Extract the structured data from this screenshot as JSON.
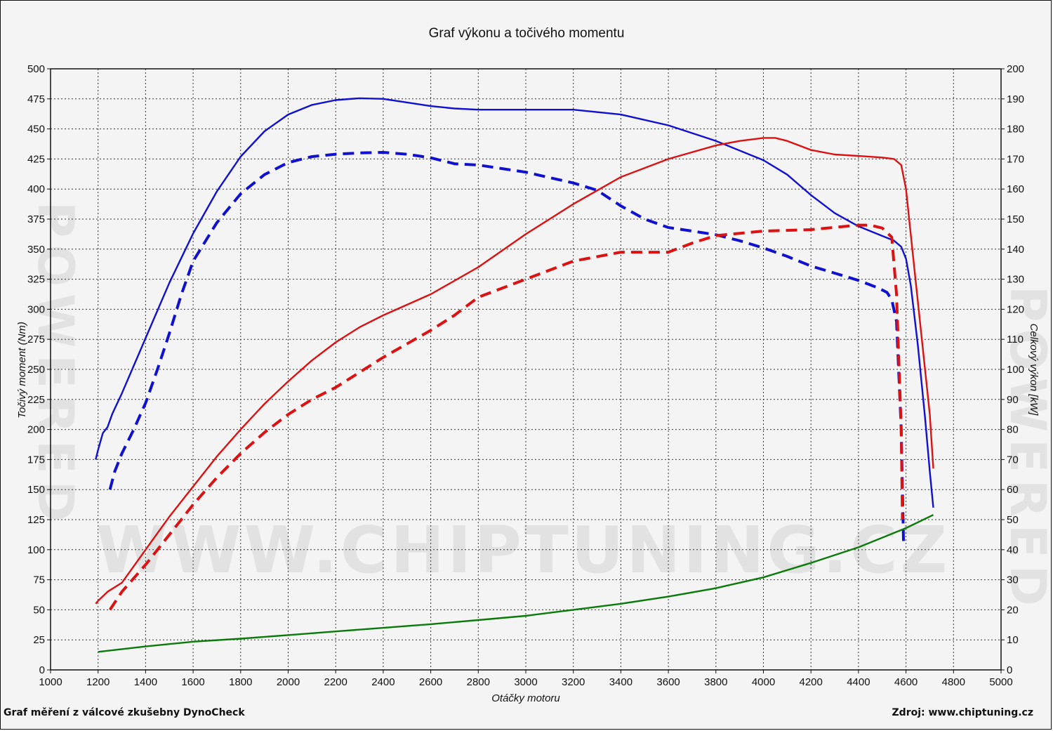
{
  "chart_data": {
    "type": "line",
    "title": "Graf výkonu a točivého momentu",
    "xlabel": "Otáčky motoru",
    "ylabel_left": "Točivý moment (Nm)",
    "ylabel_right": "Celkový výkon [kW]",
    "xlim": [
      1000,
      5000
    ],
    "ylim_left": [
      0,
      500
    ],
    "ylim_right": [
      0,
      200
    ],
    "x_ticks": [
      1000,
      1200,
      1400,
      1600,
      1800,
      2000,
      2200,
      2400,
      2600,
      2800,
      3000,
      3200,
      3400,
      3600,
      3800,
      4000,
      4200,
      4400,
      4600,
      4800,
      5000
    ],
    "y_left_ticks": [
      0,
      25,
      50,
      75,
      100,
      125,
      150,
      175,
      200,
      225,
      250,
      275,
      300,
      325,
      350,
      375,
      400,
      425,
      450,
      475,
      500
    ],
    "y_right_ticks": [
      0,
      10,
      20,
      30,
      40,
      50,
      60,
      70,
      80,
      90,
      100,
      110,
      120,
      130,
      140,
      150,
      160,
      170,
      180,
      190,
      200
    ],
    "grid": true,
    "series": [
      {
        "axis": "left",
        "color": "#1010d0",
        "dash": false,
        "points": [
          [
            1190,
            175
          ],
          [
            1200,
            183
          ],
          [
            1220,
            197
          ],
          [
            1240,
            202
          ],
          [
            1260,
            213
          ],
          [
            1300,
            230
          ],
          [
            1350,
            253
          ],
          [
            1400,
            276
          ],
          [
            1500,
            322
          ],
          [
            1600,
            363
          ],
          [
            1700,
            398
          ],
          [
            1800,
            427
          ],
          [
            1900,
            448
          ],
          [
            2000,
            462
          ],
          [
            2100,
            470
          ],
          [
            2200,
            474
          ],
          [
            2300,
            475.5
          ],
          [
            2400,
            475
          ],
          [
            2500,
            472
          ],
          [
            2600,
            469
          ],
          [
            2700,
            467
          ],
          [
            2800,
            466
          ],
          [
            3000,
            466
          ],
          [
            3200,
            466
          ],
          [
            3400,
            462
          ],
          [
            3600,
            453
          ],
          [
            3800,
            440
          ],
          [
            4000,
            424
          ],
          [
            4100,
            412
          ],
          [
            4200,
            395
          ],
          [
            4300,
            380
          ],
          [
            4400,
            369
          ],
          [
            4500,
            361
          ],
          [
            4550,
            357
          ],
          [
            4580,
            352
          ],
          [
            4600,
            342
          ],
          [
            4620,
            320
          ],
          [
            4650,
            270
          ],
          [
            4680,
            210
          ],
          [
            4700,
            165
          ],
          [
            4715,
            135
          ]
        ]
      },
      {
        "axis": "left",
        "color": "#1010d0",
        "dash": true,
        "points": [
          [
            1250,
            150
          ],
          [
            1270,
            165
          ],
          [
            1300,
            180
          ],
          [
            1350,
            200
          ],
          [
            1400,
            222
          ],
          [
            1450,
            250
          ],
          [
            1500,
            280
          ],
          [
            1550,
            312
          ],
          [
            1600,
            340
          ],
          [
            1700,
            372
          ],
          [
            1800,
            396
          ],
          [
            1900,
            412
          ],
          [
            2000,
            422
          ],
          [
            2100,
            427
          ],
          [
            2200,
            429
          ],
          [
            2300,
            430
          ],
          [
            2400,
            430.5
          ],
          [
            2500,
            429
          ],
          [
            2600,
            426
          ],
          [
            2700,
            421
          ],
          [
            2800,
            420
          ],
          [
            2900,
            417
          ],
          [
            3000,
            414
          ],
          [
            3200,
            405
          ],
          [
            3300,
            399
          ],
          [
            3400,
            386
          ],
          [
            3500,
            375
          ],
          [
            3600,
            368
          ],
          [
            3700,
            365
          ],
          [
            3800,
            362
          ],
          [
            3900,
            357
          ],
          [
            4000,
            351
          ],
          [
            4100,
            344
          ],
          [
            4200,
            336
          ],
          [
            4300,
            330
          ],
          [
            4400,
            324
          ],
          [
            4480,
            318
          ],
          [
            4520,
            314
          ],
          [
            4540,
            308
          ],
          [
            4560,
            290
          ],
          [
            4580,
            200
          ],
          [
            4585,
            150
          ],
          [
            4590,
            103
          ]
        ]
      },
      {
        "axis": "right",
        "color": "#dd1111",
        "dash": false,
        "points": [
          [
            1190,
            22
          ],
          [
            1200,
            23
          ],
          [
            1240,
            26
          ],
          [
            1300,
            29
          ],
          [
            1400,
            40
          ],
          [
            1500,
            51
          ],
          [
            1600,
            61
          ],
          [
            1700,
            71
          ],
          [
            1800,
            80
          ],
          [
            1900,
            88.5
          ],
          [
            2000,
            96
          ],
          [
            2100,
            103
          ],
          [
            2200,
            109
          ],
          [
            2300,
            114
          ],
          [
            2400,
            118
          ],
          [
            2600,
            125
          ],
          [
            2800,
            134
          ],
          [
            3000,
            145
          ],
          [
            3200,
            155
          ],
          [
            3400,
            164
          ],
          [
            3600,
            170
          ],
          [
            3800,
            174.5
          ],
          [
            3900,
            176
          ],
          [
            4000,
            177
          ],
          [
            4050,
            177
          ],
          [
            4100,
            176
          ],
          [
            4200,
            173
          ],
          [
            4300,
            171.5
          ],
          [
            4400,
            171
          ],
          [
            4500,
            170.5
          ],
          [
            4550,
            170
          ],
          [
            4580,
            168
          ],
          [
            4600,
            160
          ],
          [
            4640,
            130
          ],
          [
            4680,
            100
          ],
          [
            4700,
            85
          ],
          [
            4715,
            67
          ]
        ]
      },
      {
        "axis": "right",
        "color": "#dd1111",
        "dash": true,
        "points": [
          [
            1250,
            20
          ],
          [
            1300,
            26
          ],
          [
            1400,
            35
          ],
          [
            1500,
            45
          ],
          [
            1600,
            55
          ],
          [
            1700,
            64
          ],
          [
            1800,
            72
          ],
          [
            1900,
            79
          ],
          [
            2000,
            85
          ],
          [
            2100,
            90
          ],
          [
            2200,
            94
          ],
          [
            2400,
            104
          ],
          [
            2600,
            113
          ],
          [
            2700,
            118
          ],
          [
            2800,
            124
          ],
          [
            3000,
            130
          ],
          [
            3200,
            136
          ],
          [
            3400,
            139
          ],
          [
            3600,
            139
          ],
          [
            3700,
            142
          ],
          [
            3800,
            144.5
          ],
          [
            4000,
            146
          ],
          [
            4200,
            146.5
          ],
          [
            4400,
            148
          ],
          [
            4450,
            148
          ],
          [
            4500,
            147
          ],
          [
            4540,
            144
          ],
          [
            4560,
            125
          ],
          [
            4580,
            80
          ],
          [
            4585,
            50
          ]
        ]
      },
      {
        "axis": "left",
        "color": "#0a7a0a",
        "dash": false,
        "points": [
          [
            1200,
            15
          ],
          [
            1400,
            19.5
          ],
          [
            1600,
            23.5
          ],
          [
            1800,
            26
          ],
          [
            2000,
            29
          ],
          [
            2200,
            32
          ],
          [
            2400,
            35
          ],
          [
            2600,
            38
          ],
          [
            2800,
            41.5
          ],
          [
            3000,
            45
          ],
          [
            3200,
            50
          ],
          [
            3400,
            55
          ],
          [
            3600,
            61
          ],
          [
            3800,
            68
          ],
          [
            4000,
            77
          ],
          [
            4200,
            89
          ],
          [
            4400,
            102
          ],
          [
            4600,
            118
          ],
          [
            4715,
            129
          ]
        ]
      }
    ]
  },
  "footer": {
    "left": "Graf měření z válcové zkušebny DynoCheck",
    "right": "Zdroj: www.chiptuning.cz"
  },
  "watermark": {
    "main": "WWW.CHIPTUNING.CZ",
    "side": "POWERED"
  }
}
